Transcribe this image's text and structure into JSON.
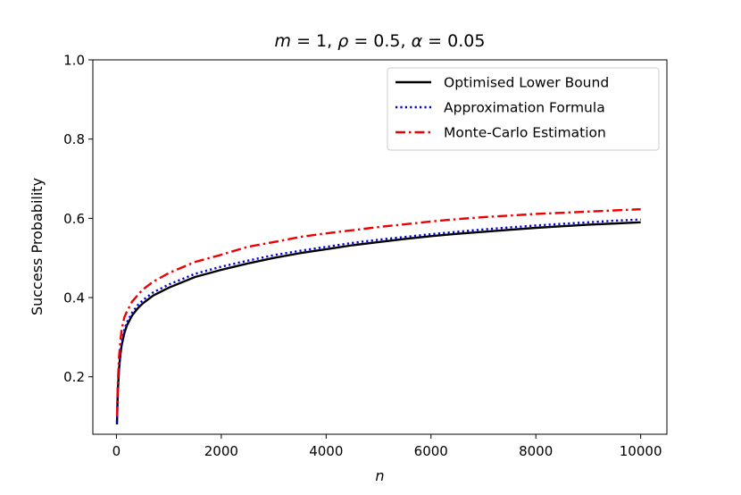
{
  "chart_data": {
    "type": "line",
    "title_parts": {
      "m_var": "m",
      "m_eq": " = 1, ",
      "rho_var": "ρ",
      "rho_eq": " = 0.5, ",
      "alpha_var": "α",
      "alpha_eq": " = 0.05"
    },
    "xlabel": "n",
    "ylabel": "Success Probability",
    "xlim": [
      -450,
      10500
    ],
    "ylim": [
      0.055,
      1.0
    ],
    "xticks": [
      0,
      2000,
      4000,
      6000,
      8000,
      10000
    ],
    "yticks": [
      0.2,
      0.4,
      0.6,
      0.8,
      1.0
    ],
    "xtick_labels": [
      "0",
      "2000",
      "4000",
      "6000",
      "8000",
      "10000"
    ],
    "ytick_labels": [
      "0.2",
      "0.4",
      "0.6",
      "0.8",
      "1.0"
    ],
    "legend_position": "top-right",
    "x": [
      10,
      25,
      50,
      75,
      100,
      150,
      200,
      300,
      400,
      500,
      700,
      1000,
      1500,
      2000,
      2500,
      3000,
      3500,
      4000,
      4500,
      5000,
      5500,
      6000,
      6500,
      7000,
      7500,
      8000,
      8500,
      9000,
      9500,
      10000
    ],
    "series": [
      {
        "name": "Optimised Lower Bound",
        "color": "#000000",
        "style": "solid",
        "values": [
          0.08,
          0.16,
          0.22,
          0.255,
          0.28,
          0.31,
          0.33,
          0.355,
          0.372,
          0.385,
          0.405,
          0.425,
          0.452,
          0.47,
          0.486,
          0.5,
          0.512,
          0.522,
          0.532,
          0.54,
          0.548,
          0.555,
          0.561,
          0.566,
          0.571,
          0.576,
          0.58,
          0.584,
          0.587,
          0.59
        ]
      },
      {
        "name": "Approximation Formula",
        "color": "#0000dd",
        "style": "dotted",
        "values": [
          0.085,
          0.165,
          0.225,
          0.262,
          0.288,
          0.318,
          0.338,
          0.362,
          0.38,
          0.393,
          0.413,
          0.433,
          0.46,
          0.478,
          0.493,
          0.507,
          0.518,
          0.528,
          0.538,
          0.546,
          0.553,
          0.56,
          0.566,
          0.572,
          0.577,
          0.582,
          0.586,
          0.59,
          0.594,
          0.597
        ]
      },
      {
        "name": "Monte-Carlo Estimation",
        "color": "#ee0000",
        "style": "dashdot",
        "values": [
          0.1,
          0.18,
          0.25,
          0.29,
          0.32,
          0.35,
          0.365,
          0.39,
          0.405,
          0.42,
          0.44,
          0.462,
          0.49,
          0.508,
          0.528,
          0.54,
          0.553,
          0.562,
          0.57,
          0.578,
          0.585,
          0.592,
          0.598,
          0.603,
          0.607,
          0.611,
          0.614,
          0.617,
          0.62,
          0.623
        ]
      }
    ]
  }
}
